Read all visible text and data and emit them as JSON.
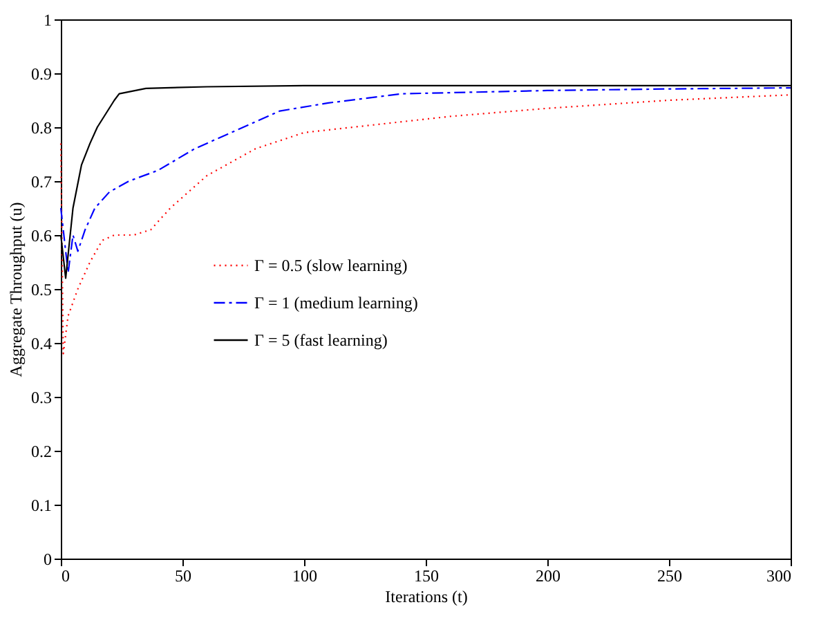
{
  "chart_data": {
    "type": "line",
    "xlabel": "Iterations (t)",
    "ylabel": "Aggregate Throughput (u)",
    "xlim": [
      0,
      300
    ],
    "ylim": [
      0,
      1
    ],
    "xticks": [
      0,
      50,
      100,
      150,
      200,
      250,
      300
    ],
    "yticks": [
      0,
      0.1,
      0.2,
      0.3,
      0.4,
      0.5,
      0.6,
      0.7,
      0.8,
      0.9,
      1
    ],
    "grid": false,
    "legend": "center left",
    "marker": "none",
    "series": [
      {
        "name": "Γ = 0.5 (slow learning)",
        "color": "#ff0000",
        "line_style": "dotted",
        "x": [
          0,
          1,
          3,
          7,
          12,
          17,
          22,
          30,
          37,
          45,
          60,
          80,
          100,
          130,
          160,
          200,
          250,
          300
        ],
        "values": [
          0.77,
          0.38,
          0.45,
          0.5,
          0.55,
          0.59,
          0.6,
          0.6,
          0.61,
          0.65,
          0.71,
          0.76,
          0.79,
          0.805,
          0.82,
          0.835,
          0.85,
          0.86
        ]
      },
      {
        "name": "Γ = 1 (medium learning)",
        "color": "#0000ff",
        "line_style": "dashdot",
        "x": [
          0,
          3,
          5,
          7,
          10,
          14,
          20,
          28,
          40,
          55,
          70,
          90,
          110,
          140,
          200,
          250,
          300
        ],
        "values": [
          0.65,
          0.53,
          0.6,
          0.57,
          0.61,
          0.65,
          0.68,
          0.7,
          0.72,
          0.76,
          0.79,
          0.83,
          0.845,
          0.862,
          0.868,
          0.871,
          0.873
        ]
      },
      {
        "name": "Γ = 5 (fast learning)",
        "color": "#000000",
        "line_style": "solid",
        "x": [
          0,
          2,
          5,
          8.5,
          12,
          15,
          22,
          24,
          35,
          60,
          100,
          300
        ],
        "values": [
          0.6,
          0.52,
          0.65,
          0.73,
          0.77,
          0.8,
          0.85,
          0.862,
          0.872,
          0.875,
          0.877,
          0.877
        ]
      }
    ]
  }
}
